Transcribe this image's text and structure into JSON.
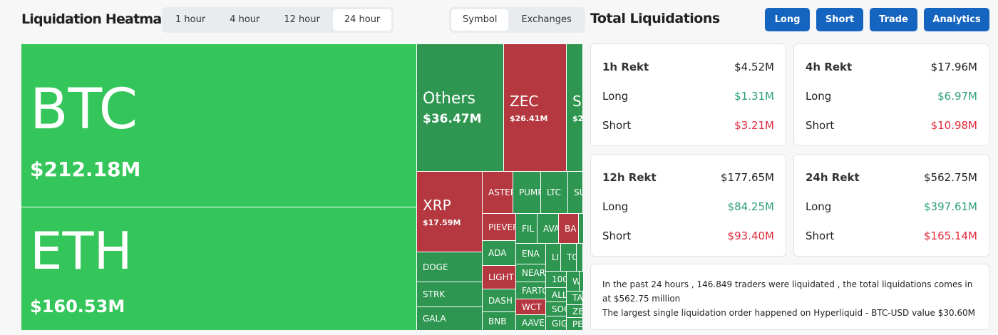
{
  "header": {
    "title": "Liquidation Heatmap",
    "time_tabs": [
      "1 hour",
      "4 hour",
      "12 hour",
      "24 hour"
    ],
    "active_time": "24 hour",
    "view_tabs": [
      "Symbol",
      "Exchanges"
    ],
    "active_view": "Symbol"
  },
  "colors": {
    "long_big": "#34c65a",
    "long": "#2e9650",
    "short": "#b5373f",
    "button": "#1565c0",
    "positive": "#2e9e7e",
    "negative": "#e0283b"
  },
  "treemap": [
    {
      "name": "BTC",
      "value": "$212.18M",
      "side": "long"
    },
    {
      "name": "ETH",
      "value": "$160.53M",
      "side": "long"
    },
    {
      "name": "Others",
      "value": "$36.47M",
      "side": "long"
    },
    {
      "name": "ZEC",
      "value": "$26.41M",
      "side": "short"
    },
    {
      "name": "S",
      "value": "$2",
      "side": "long"
    },
    {
      "name": "XRP",
      "value": "$17.59M",
      "side": "short"
    },
    {
      "name": "DOGE",
      "side": "long"
    },
    {
      "name": "STRK",
      "side": "long"
    },
    {
      "name": "GALA",
      "side": "long"
    },
    {
      "name": "ASTER",
      "side": "short"
    },
    {
      "name": "PUMP",
      "side": "long"
    },
    {
      "name": "LTC",
      "side": "long"
    },
    {
      "name": "SU",
      "side": "long"
    },
    {
      "name": "PIEVER",
      "side": "short"
    },
    {
      "name": "ADA",
      "side": "long"
    },
    {
      "name": "LIGHT",
      "side": "short"
    },
    {
      "name": "DASH",
      "side": "long"
    },
    {
      "name": "BNB",
      "side": "long"
    },
    {
      "name": "FIL",
      "side": "long"
    },
    {
      "name": "AVA",
      "side": "long"
    },
    {
      "name": "BA",
      "side": "short"
    },
    {
      "name": "",
      "side": "long"
    },
    {
      "name": "ENA",
      "side": "long"
    },
    {
      "name": "NEAR",
      "side": "long"
    },
    {
      "name": "FARTC",
      "side": "long"
    },
    {
      "name": "WCT",
      "side": "short"
    },
    {
      "name": "AAVE",
      "side": "long"
    },
    {
      "name": "LI",
      "side": "long"
    },
    {
      "name": "TO",
      "side": "long"
    },
    {
      "name": "",
      "side": "long"
    },
    {
      "name": "100",
      "side": "long"
    },
    {
      "name": "ALL",
      "side": "long"
    },
    {
      "name": "SOC",
      "side": "long"
    },
    {
      "name": "GIG",
      "side": "long"
    },
    {
      "name": "W",
      "side": "long"
    },
    {
      "name": "",
      "side": "long"
    },
    {
      "name": "TA",
      "side": "long"
    },
    {
      "name": "ZE",
      "side": "long"
    },
    {
      "name": "PE",
      "side": "long"
    }
  ],
  "right": {
    "title": "Total Liquidations",
    "buttons": [
      "Long",
      "Short",
      "Trade",
      "Analytics"
    ],
    "cards": [
      {
        "label": "1h Rekt",
        "total": "$4.52M",
        "long_label": "Long",
        "long": "$1.31M",
        "short_label": "Short",
        "short": "$3.21M"
      },
      {
        "label": "4h Rekt",
        "total": "$17.96M",
        "long_label": "Long",
        "long": "$6.97M",
        "short_label": "Short",
        "short": "$10.98M"
      },
      {
        "label": "12h Rekt",
        "total": "$177.65M",
        "long_label": "Long",
        "long": "$84.25M",
        "short_label": "Short",
        "short": "$93.40M"
      },
      {
        "label": "24h Rekt",
        "total": "$562.75M",
        "long_label": "Long",
        "long": "$397.61M",
        "short_label": "Short",
        "short": "$165.14M"
      }
    ],
    "summary_1": "In the past 24 hours , 146.849 traders were liquidated , the total liquidations comes in at $562.75 million",
    "summary_2": "The largest single liquidation order happened on Hyperliquid - BTC-USD value $30.60M"
  }
}
